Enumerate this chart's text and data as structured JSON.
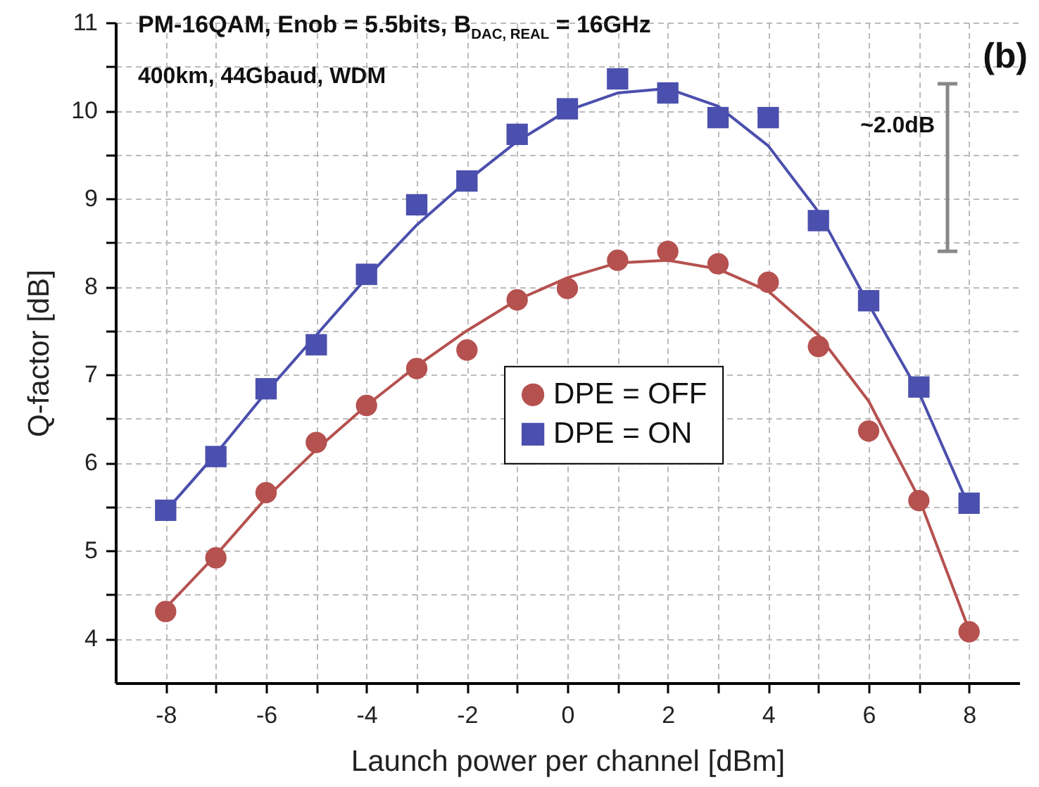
{
  "chart_data": {
    "type": "scatter",
    "title": "PM-16QAM, Enob = 5.5bits, B$_{DAC, REAL}$ = 16GHz",
    "subtitle": "400km, 44Gbaud, WDM",
    "xlabel": "Launch power per channel [dBm]",
    "ylabel": "Q-factor [dB]",
    "annotations": [
      "(b)",
      "~2.0dB"
    ],
    "x": [
      -8,
      -7,
      -6,
      -5,
      -4,
      -3,
      -2,
      -1,
      0,
      1,
      2,
      3,
      4,
      5,
      6,
      7,
      8
    ],
    "series": [
      {
        "name": "DPE = OFF",
        "marker": "circle",
        "color": "#b5514f",
        "values": [
          4.31,
          4.92,
          5.66,
          6.23,
          6.65,
          7.07,
          7.28,
          7.85,
          7.98,
          8.3,
          8.4,
          8.26,
          8.05,
          7.32,
          6.36,
          5.57,
          4.08
        ]
      },
      {
        "name": "DPE = ON",
        "marker": "square",
        "color": "#4b4fad",
        "values": [
          5.46,
          6.07,
          6.84,
          7.34,
          8.14,
          8.93,
          9.2,
          9.73,
          10.02,
          10.36,
          10.2,
          9.92,
          9.92,
          8.75,
          7.84,
          6.86,
          5.54
        ]
      },
      {
        "type": "line",
        "color": "#b5514f",
        "line_style": "solid",
        "values": [
          4.35,
          4.95,
          5.6,
          6.15,
          6.65,
          7.1,
          7.5,
          7.85,
          8.1,
          8.27,
          8.3,
          8.2,
          7.95,
          7.45,
          6.7,
          5.6,
          4.1
        ]
      },
      {
        "type": "line",
        "color": "#4b4fad",
        "line_style": "solid",
        "values": [
          5.45,
          6.1,
          6.8,
          7.45,
          8.1,
          8.7,
          9.2,
          9.65,
          10.0,
          10.2,
          10.25,
          10.05,
          9.6,
          8.85,
          7.8,
          6.8,
          5.5
        ]
      }
    ],
    "xlim": [
      -9,
      9
    ],
    "xticks": [
      -8,
      {
        "value": -7,
        "label": null
      },
      -6,
      {
        "value": -5,
        "label": null
      },
      -4,
      {
        "value": -3,
        "label": null
      },
      -2,
      {
        "value": -1,
        "label": null
      },
      0,
      {
        "value": 1,
        "label": null
      },
      2,
      {
        "value": 3,
        "label": null
      },
      4,
      {
        "value": 5,
        "label": null
      },
      6,
      {
        "value": 7,
        "label": null
      },
      8
    ],
    "ylim": [
      3.5,
      11
    ],
    "yticks": [
      4,
      {
        "value": 4.5,
        "label": null
      },
      5,
      {
        "value": 5.5,
        "label": null
      },
      6,
      {
        "value": 6.5,
        "label": null
      },
      7,
      {
        "value": 7.5,
        "label": null
      },
      8,
      {
        "value": 8.5,
        "label": null
      },
      9,
      {
        "value": 9.5,
        "label": null
      },
      10,
      {
        "value": 10.5,
        "label": null
      },
      11
    ],
    "grid": true,
    "legend": "center"
  }
}
